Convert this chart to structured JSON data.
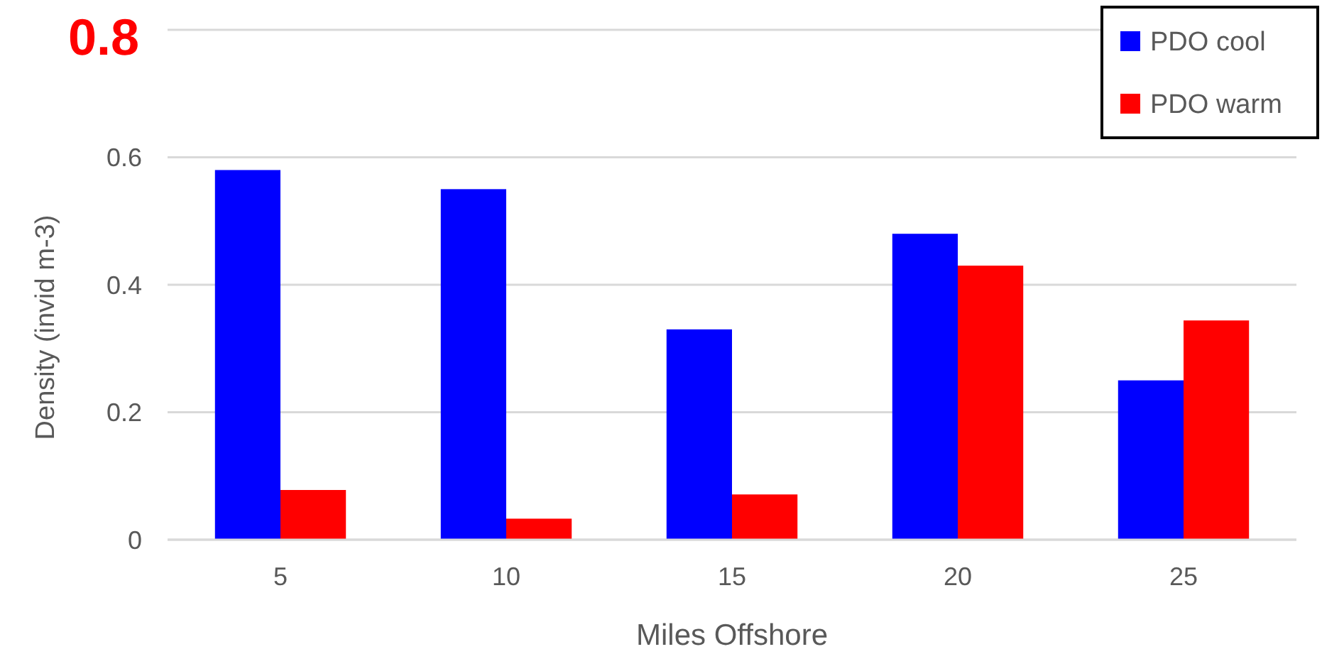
{
  "chart_data": {
    "type": "bar",
    "xlabel": "Miles Offshore",
    "ylabel": "Density (invid m-3)",
    "categories": [
      "5",
      "10",
      "15",
      "20",
      "25"
    ],
    "series": [
      {
        "name": "PDO cool",
        "color": "#0000ff",
        "values": [
          0.58,
          0.55,
          0.33,
          0.48,
          0.25
        ]
      },
      {
        "name": "PDO warm",
        "color": "#ff0000",
        "values": [
          0.078,
          0.033,
          0.071,
          0.43,
          0.344
        ]
      }
    ],
    "ylim": [
      0,
      0.8
    ],
    "yticks": [
      0,
      0.2,
      0.4,
      0.6,
      {
        "value": 0.8,
        "label": null
      }
    ],
    "annotations": [
      "0.8"
    ],
    "grid": "y",
    "legend": "top right"
  }
}
